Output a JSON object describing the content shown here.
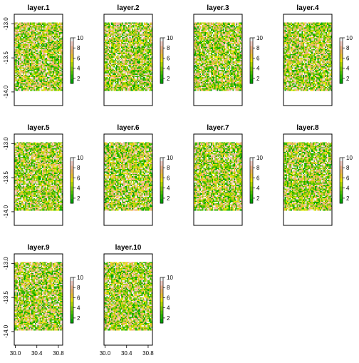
{
  "chart_data": {
    "type": "heatmap",
    "colors": [
      "#00A600",
      "#24B300",
      "#4CC000",
      "#7ACC00",
      "#ADD900",
      "#E6E600",
      "#E8C32E",
      "#EBB25E",
      "#EDB48E",
      "#F0C9C0",
      "#F2F2F2"
    ],
    "legend_ticks": [
      "2",
      "4",
      "6",
      "8",
      "10"
    ],
    "value_range": [
      1,
      10
    ],
    "x_ticks": [
      "30.0",
      "30.4",
      "30.8"
    ],
    "y_ticks": [
      "-13.0",
      "-13.5",
      "-14.0"
    ],
    "xlim": [
      29.98,
      30.88
    ],
    "ylim": [
      -14.2,
      -12.86
    ],
    "raster_extent": {
      "x": [
        29.98,
        30.88
      ],
      "y": [
        -13.98,
        -12.98
      ]
    },
    "panels": [
      {
        "title": "layer.1"
      },
      {
        "title": "layer.2"
      },
      {
        "title": "layer.3"
      },
      {
        "title": "layer.4"
      },
      {
        "title": "layer.5"
      },
      {
        "title": "layer.6"
      },
      {
        "title": "layer.7"
      },
      {
        "title": "layer.8"
      },
      {
        "title": "layer.9"
      },
      {
        "title": "layer.10"
      }
    ]
  }
}
